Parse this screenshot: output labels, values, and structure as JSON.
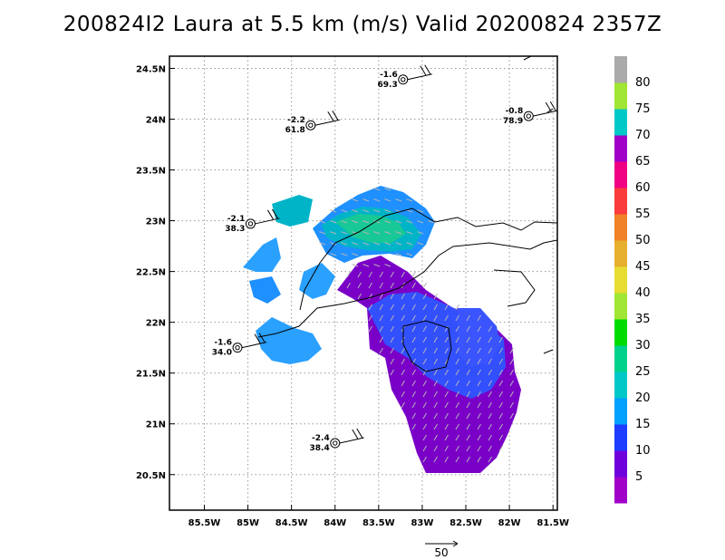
{
  "title": "200824I2 Laura at 5.5 km (m/s) Valid 20200824  2357Z",
  "chart_data": {
    "type": "heatmap",
    "title": "200824I2 Laura at 5.5 km (m/s) Valid 20200824  2357Z",
    "xlabel": "",
    "ylabel": "",
    "xlim": [
      -85.9,
      -81.45
    ],
    "ylim": [
      20.15,
      24.62
    ],
    "x_ticks": [
      {
        "value": -85.5,
        "label": "85.5W"
      },
      {
        "value": -85,
        "label": "85W"
      },
      {
        "value": -84.5,
        "label": "84.5W"
      },
      {
        "value": -84,
        "label": "84W"
      },
      {
        "value": -83.5,
        "label": "83.5W"
      },
      {
        "value": -83,
        "label": "83W"
      },
      {
        "value": -82.5,
        "label": "82.5W"
      },
      {
        "value": -82,
        "label": "82W"
      },
      {
        "value": -81.5,
        "label": "81.5W"
      }
    ],
    "y_ticks": [
      {
        "value": 20.5,
        "label": "20.5N"
      },
      {
        "value": 21,
        "label": "21N"
      },
      {
        "value": 21.5,
        "label": "21.5N"
      },
      {
        "value": 22,
        "label": "22N"
      },
      {
        "value": 22.5,
        "label": "22.5N"
      },
      {
        "value": 23,
        "label": "23N"
      },
      {
        "value": 23.5,
        "label": "23.5N"
      },
      {
        "value": 24,
        "label": "24N"
      },
      {
        "value": 24.5,
        "label": "24.5N"
      }
    ],
    "grid": true,
    "colorbar": {
      "labels": [
        "5",
        "10",
        "15",
        "20",
        "25",
        "30",
        "35",
        "40",
        "45",
        "50",
        "55",
        "60",
        "65",
        "70",
        "75",
        "80"
      ],
      "colors": [
        "#a000c8",
        "#6e00dc",
        "#1e3cff",
        "#00a0ff",
        "#00c8c8",
        "#00d28c",
        "#00dc00",
        "#a0e632",
        "#e6dc32",
        "#e6af2d",
        "#f08228",
        "#fa3c3c",
        "#f00082",
        "#a000c8",
        "#00c8c8",
        "#a0e632",
        "#aaaaaa"
      ]
    },
    "stations": [
      {
        "lon": -83.22,
        "lat": 24.39,
        "top": "-1.6",
        "bottom": "69.3"
      },
      {
        "lon": -84.28,
        "lat": 23.94,
        "top": "-2.2",
        "bottom": "61.8"
      },
      {
        "lon": -81.78,
        "lat": 24.03,
        "top": "-0.8",
        "bottom": "78.9"
      },
      {
        "lon": -84.97,
        "lat": 22.97,
        "top": "-2.1",
        "bottom": "38.3"
      },
      {
        "lon": -85.12,
        "lat": 21.75,
        "top": "-1.6",
        "bottom": "34.0"
      },
      {
        "lon": -84.0,
        "lat": 20.81,
        "top": "-2.4",
        "bottom": "38.4"
      }
    ],
    "reference_vector": {
      "label": "50"
    }
  }
}
